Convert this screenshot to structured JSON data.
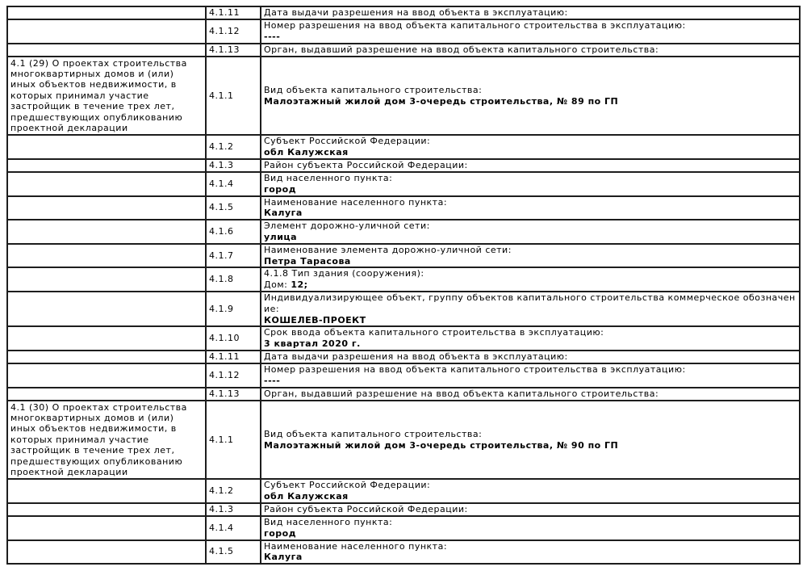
{
  "document": {
    "background_color": "#ffffff",
    "border_color": "#1d1d1d",
    "text_color": "#000000",
    "section_29_label": "4.1 (29) О проектах строительства многоквартирных домов и (или) иных объектов недвижимости, в которых принимал участие застройщик в течение трех лет, предшествующих опубликованию проектной декларации",
    "section_30_label": "4.1 (30) О проектах строительства многоквартирных домов и (или) иных объектов недвижимости, в которых принимал участие застройщик в течение трех лет, предшествующих опубликованию проектной декларации"
  },
  "table": {
    "rows": [
      {
        "left_label": "",
        "num": "4.1.11",
        "label": "Дата выдачи разрешения на ввод объекта в эксплуатацию:",
        "value_prefix": "",
        "value": ""
      },
      {
        "left_label": "",
        "num": "4.1.12",
        "label": "Номер разрешения на ввод объекта капитального строительства в эксплуатацию:",
        "value_prefix": "",
        "value": "----"
      },
      {
        "left_label": "",
        "num": "4.1.13",
        "label": "Орган, выдавший разрешение на ввод объекта капитального строительства:",
        "value_prefix": "",
        "value": ""
      },
      {
        "left_label": "4.1 (29) О проектах строительства многоквартирных домов и (или) иных объектов недвижимости, в которых принимал участие застройщик в течение трех лет, предшествующих опубликованию проектной декларации",
        "num": "4.1.1",
        "label": "Вид объекта капитального строительства:",
        "value_prefix": "",
        "value": "Малоэтажный жилой дом 3-очередь строительства, № 89 по ГП"
      },
      {
        "left_label": "",
        "num": "4.1.2",
        "label": "Субъект Российской Федерации:",
        "value_prefix": "",
        "value": "обл Калужская"
      },
      {
        "left_label": "",
        "num": "4.1.3",
        "label": "Район субъекта Российской Федерации:",
        "value_prefix": "",
        "value": ""
      },
      {
        "left_label": "",
        "num": "4.1.4",
        "label": "Вид населенного пункта:",
        "value_prefix": "",
        "value": "город"
      },
      {
        "left_label": "",
        "num": "4.1.5",
        "label": "Наименование населенного пункта:",
        "value_prefix": "",
        "value": "Калуга"
      },
      {
        "left_label": "",
        "num": "4.1.6",
        "label": "Элемент дорожно-уличной сети:",
        "value_prefix": "",
        "value": "улица"
      },
      {
        "left_label": "",
        "num": "4.1.7",
        "label": "Наименование элемента дорожно-уличной сети:",
        "value_prefix": "",
        "value": "Петра Тарасова"
      },
      {
        "left_label": "",
        "num": "4.1.8",
        "label": "4.1.8 Тип здания (сооружения):",
        "value_prefix": "Дом: ",
        "value": "12;"
      },
      {
        "left_label": "",
        "num": "4.1.9",
        "label": "Индивидуализирующее объект, группу объектов капитального строительства коммерческое обозначение:",
        "value_prefix": "",
        "value": "КОШЕЛЕВ-ПРОЕКТ"
      },
      {
        "left_label": "",
        "num": "4.1.10",
        "label": "Срок ввода объекта капитального строительства в эксплуатацию:",
        "value_prefix": "",
        "value": "3 квартал 2020 г."
      },
      {
        "left_label": "",
        "num": "4.1.11",
        "label": "Дата выдачи разрешения на ввод объекта в эксплуатацию:",
        "value_prefix": "",
        "value": ""
      },
      {
        "left_label": "",
        "num": "4.1.12",
        "label": "Номер разрешения на ввод объекта капитального строительства в эксплуатацию:",
        "value_prefix": "",
        "value": "----"
      },
      {
        "left_label": "",
        "num": "4.1.13",
        "label": "Орган, выдавший разрешение на ввод объекта капитального строительства:",
        "value_prefix": "",
        "value": ""
      },
      {
        "left_label": "4.1 (30) О проектах строительства многоквартирных домов и (или) иных объектов недвижимости, в которых принимал участие застройщик в течение трех лет, предшествующих опубликованию проектной декларации",
        "num": "4.1.1",
        "label": "Вид объекта капитального строительства:",
        "value_prefix": "",
        "value": "Малоэтажный жилой дом 3-очередь строительства, № 90 по ГП"
      },
      {
        "left_label": "",
        "num": "4.1.2",
        "label": "Субъект Российской Федерации:",
        "value_prefix": "",
        "value": "обл Калужская"
      },
      {
        "left_label": "",
        "num": "4.1.3",
        "label": "Район субъекта Российской Федерации:",
        "value_prefix": "",
        "value": ""
      },
      {
        "left_label": "",
        "num": "4.1.4",
        "label": "Вид населенного пункта:",
        "value_prefix": "",
        "value": "город"
      },
      {
        "left_label": "",
        "num": "4.1.5",
        "label": "Наименование населенного пункта:",
        "value_prefix": "",
        "value": "Калуга"
      }
    ]
  }
}
